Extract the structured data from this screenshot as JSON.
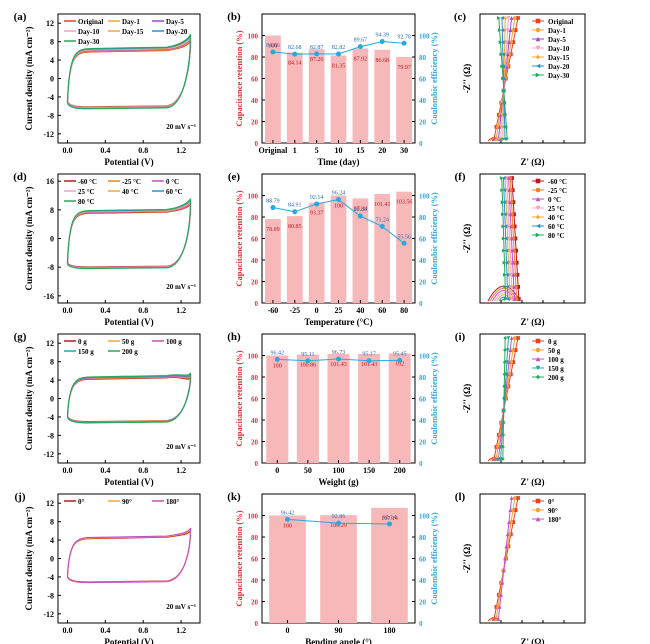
{
  "rows": [
    {
      "cv": {
        "letter": "(a)",
        "xlabel": "Potential (V)",
        "ylabel": "Current density (mA cm⁻²)",
        "xticks": [
          "0.0",
          "0.4",
          "0.8",
          "1.2"
        ],
        "yticks": [
          "12",
          "8",
          "4",
          "0",
          "-4",
          "-8",
          "-12"
        ],
        "xlim": [
          -0.1,
          1.4
        ],
        "ylim": [
          -14,
          14
        ],
        "ytick_values": [
          12,
          8,
          4,
          0,
          -4,
          -8,
          -12
        ],
        "note": "20 mV s⁻¹",
        "legend": [
          {
            "name": "Original",
            "color": "#e8402a"
          },
          {
            "name": "Day-1",
            "color": "#f2a431"
          },
          {
            "name": "Day-5",
            "color": "#9f47c4"
          },
          {
            "name": "Day-10",
            "color": "#f4a1c8"
          },
          {
            "name": "Day-15",
            "color": "#f0a93a"
          },
          {
            "name": "Day-20",
            "color": "#2a8fd6"
          },
          {
            "name": "Day-30",
            "color": "#26a95b"
          }
        ],
        "loop": {
          "top": 6.2,
          "bottom": -6.2,
          "end_high": 9.0,
          "end_low": 4.0
        }
      },
      "bar": {
        "letter": "(b)",
        "xlabel": "Time (day)",
        "ylabel_left": "Capacitance retention (%)",
        "ylabel_right": "Coulombic efficiency (%)",
        "categories": [
          "Original",
          "1",
          "5",
          "10",
          "15",
          "20",
          "30"
        ],
        "bars": [
          100,
          84.14,
          87.26,
          81.35,
          87.92,
          86.68,
          79.97
        ],
        "bar_labels": [
          "100",
          "84.14",
          "87.26",
          "81.35",
          "87.92",
          "86.68",
          "79.97"
        ],
        "line": [
          84.66,
          82.68,
          82.87,
          82.82,
          89.67,
          94.39,
          92.78
        ],
        "line_labels": [
          "84.66",
          "82.68",
          "82.87",
          "82.82",
          "89.67",
          "94.39",
          "92.78"
        ],
        "yticks_left": [
          "100",
          "80",
          "60",
          "40",
          "20",
          "0"
        ],
        "yticks_right": [
          "100",
          "80",
          "60",
          "40",
          "20",
          "0"
        ]
      },
      "eis": {
        "letter": "(c)",
        "xlabel": "Z' (Ω)",
        "ylabel": "-Z'' (Ω)",
        "legend": [
          {
            "name": "Original",
            "color": "#e8402a",
            "marker": "square"
          },
          {
            "name": "Day-1",
            "color": "#f2a431",
            "marker": "circle"
          },
          {
            "name": "Day-5",
            "color": "#9f47c4",
            "marker": "triangle"
          },
          {
            "name": "Day-10",
            "color": "#f4a1c8",
            "marker": "tri-down"
          },
          {
            "name": "Day-15",
            "color": "#f0a93a",
            "marker": "diamond"
          },
          {
            "name": "Day-20",
            "color": "#2a8fd6",
            "marker": "tri-left"
          },
          {
            "name": "Day-30",
            "color": "#26a95b",
            "marker": "tri-right"
          }
        ]
      }
    },
    {
      "cv": {
        "letter": "(d)",
        "xlabel": "Potential (V)",
        "ylabel": "Current density (mA cm⁻²)",
        "xticks": [
          "0.0",
          "0.4",
          "0.8",
          "1.2"
        ],
        "yticks": [
          "16",
          "8",
          "0",
          "-8",
          "-16"
        ],
        "xlim": [
          -0.1,
          1.4
        ],
        "ylim": [
          -18,
          18
        ],
        "ytick_values": [
          16,
          8,
          0,
          -8,
          -16
        ],
        "note": "20 mV s⁻¹",
        "legend": [
          {
            "name": "-60 °C",
            "color": "#c0161f"
          },
          {
            "name": "-25 °C",
            "color": "#f07e2a"
          },
          {
            "name": "0 °C",
            "color": "#c64fc9"
          },
          {
            "name": "25 °C",
            "color": "#f4a1c8"
          },
          {
            "name": "40 °C",
            "color": "#f0a93a"
          },
          {
            "name": "60 °C",
            "color": "#2a8fd6"
          },
          {
            "name": "80 °C",
            "color": "#26a95b"
          }
        ],
        "loop": {
          "top": 7.5,
          "bottom": -8.0,
          "end_high": 10.5,
          "end_low": 3.5
        }
      },
      "bar": {
        "letter": "(e)",
        "xlabel": "Temperature (°C)",
        "ylabel_left": "Capacitance retention (%)",
        "ylabel_right": "Coulombic efficiency (%)",
        "categories": [
          "-60",
          "-25",
          "0",
          "25",
          "40",
          "60",
          "80"
        ],
        "bars": [
          78.09,
          80.85,
          93.37,
          100,
          97.34,
          101.41,
          103.56
        ],
        "bar_labels": [
          "78.09",
          "80.85",
          "93.37",
          "100",
          "97.34",
          "101.41",
          "103.56"
        ],
        "line": [
          88.79,
          84.91,
          92.14,
          96.24,
          80.88,
          71.24,
          55.56
        ],
        "line_labels": [
          "88.79",
          "84.91",
          "92.14",
          "96.24",
          "80.88",
          "71.24",
          "55.56"
        ],
        "yticks_left": [
          "100",
          "80",
          "60",
          "40",
          "20",
          "0"
        ],
        "yticks_right": [
          "100",
          "80",
          "60",
          "40",
          "20",
          "0"
        ]
      },
      "eis": {
        "letter": "(f)",
        "xlabel": "Z' (Ω)",
        "ylabel": "-Z'' (Ω)",
        "legend": [
          {
            "name": "-60 °C",
            "color": "#c0161f",
            "marker": "square"
          },
          {
            "name": "-25 °C",
            "color": "#f07e2a",
            "marker": "circle"
          },
          {
            "name": "0 °C",
            "color": "#c64fc9",
            "marker": "triangle"
          },
          {
            "name": "25 °C",
            "color": "#f4a1c8",
            "marker": "tri-down"
          },
          {
            "name": "40 °C",
            "color": "#f0a93a",
            "marker": "diamond"
          },
          {
            "name": "60 °C",
            "color": "#2a8fd6",
            "marker": "tri-left"
          },
          {
            "name": "80 °C",
            "color": "#26a95b",
            "marker": "tri-right"
          }
        ]
      }
    },
    {
      "cv": {
        "letter": "(g)",
        "xlabel": "Potential (V)",
        "ylabel": "Current density (mA cm⁻²)",
        "xticks": [
          "0.0",
          "0.4",
          "0.8",
          "1.2"
        ],
        "yticks": [
          "12",
          "8",
          "4",
          "0",
          "-4",
          "-8",
          "-12"
        ],
        "xlim": [
          -0.1,
          1.4
        ],
        "ylim": [
          -14,
          14
        ],
        "ytick_values": [
          12,
          8,
          4,
          0,
          -4,
          -8,
          -12
        ],
        "note": "20 mV s⁻¹",
        "legend": [
          {
            "name": "0 g",
            "color": "#c0161f"
          },
          {
            "name": "50 g",
            "color": "#f0a93a"
          },
          {
            "name": "100 g",
            "color": "#c64fc9"
          },
          {
            "name": "150 g",
            "color": "#2aa6a0"
          },
          {
            "name": "200 g",
            "color": "#26a95b"
          }
        ],
        "loop": {
          "top": 4.5,
          "bottom": -5.0,
          "end_high": 5.2,
          "end_low": 2.5
        }
      },
      "bar": {
        "letter": "(h)",
        "xlabel": "Weight (g)",
        "ylabel_left": "Capacitance retention (%)",
        "ylabel_right": "Coulombic efficiency (%)",
        "categories": [
          "0",
          "50",
          "100",
          "150",
          "200"
        ],
        "bars": [
          100,
          100.86,
          101.43,
          101.43,
          102
        ],
        "bar_labels": [
          "100",
          "100.86",
          "101.43",
          "101.43",
          "102"
        ],
        "line": [
          96.42,
          95.11,
          96.73,
          95.17,
          95.45
        ],
        "line_labels": [
          "96.42",
          "95.11",
          "96.73",
          "95.17",
          "95.45"
        ],
        "yticks_left": [
          "100",
          "80",
          "60",
          "40",
          "20",
          "0"
        ],
        "yticks_right": [
          "100",
          "80",
          "60",
          "40",
          "20",
          "0"
        ]
      },
      "eis": {
        "letter": "(i)",
        "xlabel": "Z' (Ω)",
        "ylabel": "-Z'' (Ω)",
        "legend": [
          {
            "name": "0 g",
            "color": "#e8402a",
            "marker": "square"
          },
          {
            "name": "50 g",
            "color": "#f2a431",
            "marker": "circle"
          },
          {
            "name": "100 g",
            "color": "#c64fc9",
            "marker": "triangle"
          },
          {
            "name": "150 g",
            "color": "#2aa6a0",
            "marker": "tri-down"
          },
          {
            "name": "200 g",
            "color": "#26a95b",
            "marker": "diamond"
          }
        ]
      }
    },
    {
      "cv": {
        "letter": "(j)",
        "xlabel": "Potential (V)",
        "ylabel": "Current density (mA cm⁻²)",
        "xticks": [
          "0.0",
          "0.4",
          "0.8",
          "1.2"
        ],
        "yticks": [
          "12",
          "8",
          "4",
          "0",
          "-4",
          "-8",
          "-12"
        ],
        "xlim": [
          -0.1,
          1.4
        ],
        "ylim": [
          -14,
          14
        ],
        "ytick_values": [
          12,
          8,
          4,
          0,
          -4,
          -8,
          -12
        ],
        "note": "20 mV s⁻¹",
        "legend": [
          {
            "name": "0°",
            "color": "#c0161f"
          },
          {
            "name": "90°",
            "color": "#f0a93a"
          },
          {
            "name": "180°",
            "color": "#c64fc9"
          }
        ],
        "loop": {
          "top": 4.5,
          "bottom": -5.0,
          "end_high": 6.5,
          "end_low": 2.5
        }
      },
      "bar": {
        "letter": "(k)",
        "xlabel": "Bending angle (°)",
        "ylabel_left": "Capacitance retention (%)",
        "ylabel_right": "Coulombic efficiency (%)",
        "categories": [
          "0",
          "90",
          "180"
        ],
        "bars": [
          100,
          100.29,
          107.14
        ],
        "bar_labels": [
          "100",
          "100.29",
          "107.14"
        ],
        "line": [
          96.42,
          92.86,
          92.14
        ],
        "line_labels": [
          "96.42",
          "92.86",
          "92.14"
        ],
        "yticks_left": [
          "100",
          "80",
          "60",
          "40",
          "20",
          "0"
        ],
        "yticks_right": [
          "100",
          "80",
          "60",
          "40",
          "20",
          "0"
        ]
      },
      "eis": {
        "letter": "(l)",
        "xlabel": "Z' (Ω)",
        "ylabel": "-Z'' (Ω)",
        "legend": [
          {
            "name": "0°",
            "color": "#e8402a",
            "marker": "square"
          },
          {
            "name": "90°",
            "color": "#f2a431",
            "marker": "circle"
          },
          {
            "name": "180°",
            "color": "#c64fc9",
            "marker": "triangle"
          }
        ]
      }
    }
  ],
  "chart_data": [
    {
      "type": "line",
      "panel": "(a)",
      "xlabel": "Potential (V)",
      "ylabel": "Current density (mA cm⁻²)",
      "xlim": [
        -0.1,
        1.4
      ],
      "ylim": [
        -14,
        14
      ],
      "series": [
        {
          "name": "Original"
        },
        {
          "name": "Day-1"
        },
        {
          "name": "Day-5"
        },
        {
          "name": "Day-10"
        },
        {
          "name": "Day-15"
        },
        {
          "name": "Day-20"
        },
        {
          "name": "Day-30"
        }
      ]
    },
    {
      "type": "bar",
      "panel": "(b)",
      "categories": [
        "Original",
        "1",
        "5",
        "10",
        "15",
        "20",
        "30"
      ],
      "series": [
        {
          "name": "Capacitance retention (%)",
          "values": [
            100,
            84.14,
            87.26,
            81.35,
            87.92,
            86.68,
            79.97
          ]
        },
        {
          "name": "Coulombic efficiency (%)",
          "values": [
            84.66,
            82.68,
            82.87,
            82.82,
            89.67,
            94.39,
            92.78
          ]
        }
      ],
      "xlabel": "Time (day)"
    },
    {
      "type": "scatter",
      "panel": "(c)",
      "xlabel": "Z' (Ω)",
      "ylabel": "-Z'' (Ω)"
    },
    {
      "type": "line",
      "panel": "(d)",
      "xlabel": "Potential (V)",
      "ylabel": "Current density (mA cm⁻²)",
      "xlim": [
        -0.1,
        1.4
      ],
      "ylim": [
        -18,
        18
      ],
      "series": [
        {
          "name": "-60 °C"
        },
        {
          "name": "-25 °C"
        },
        {
          "name": "0 °C"
        },
        {
          "name": "25 °C"
        },
        {
          "name": "40 °C"
        },
        {
          "name": "60 °C"
        },
        {
          "name": "80 °C"
        }
      ]
    },
    {
      "type": "bar",
      "panel": "(e)",
      "categories": [
        "-60",
        "-25",
        "0",
        "25",
        "40",
        "60",
        "80"
      ],
      "series": [
        {
          "name": "Capacitance retention (%)",
          "values": [
            78.09,
            80.85,
            93.37,
            100,
            97.34,
            101.41,
            103.56
          ]
        },
        {
          "name": "Coulombic efficiency (%)",
          "values": [
            88.79,
            84.91,
            92.14,
            96.24,
            80.88,
            71.24,
            55.56
          ]
        }
      ],
      "xlabel": "Temperature (°C)"
    },
    {
      "type": "scatter",
      "panel": "(f)",
      "xlabel": "Z' (Ω)",
      "ylabel": "-Z'' (Ω)"
    },
    {
      "type": "line",
      "panel": "(g)",
      "xlabel": "Potential (V)",
      "ylabel": "Current density (mA cm⁻²)",
      "xlim": [
        -0.1,
        1.4
      ],
      "ylim": [
        -14,
        14
      ],
      "series": [
        {
          "name": "0 g"
        },
        {
          "name": "50 g"
        },
        {
          "name": "100 g"
        },
        {
          "name": "150 g"
        },
        {
          "name": "200 g"
        }
      ]
    },
    {
      "type": "bar",
      "panel": "(h)",
      "categories": [
        "0",
        "50",
        "100",
        "150",
        "200"
      ],
      "series": [
        {
          "name": "Capacitance retention (%)",
          "values": [
            100,
            100.86,
            101.43,
            101.43,
            102
          ]
        },
        {
          "name": "Coulombic efficiency (%)",
          "values": [
            96.42,
            95.11,
            96.73,
            95.17,
            95.45
          ]
        }
      ],
      "xlabel": "Weight (g)"
    },
    {
      "type": "scatter",
      "panel": "(i)",
      "xlabel": "Z' (Ω)",
      "ylabel": "-Z'' (Ω)"
    },
    {
      "type": "line",
      "panel": "(j)",
      "xlabel": "Potential (V)",
      "ylabel": "Current density (mA cm⁻²)",
      "xlim": [
        -0.1,
        1.4
      ],
      "ylim": [
        -14,
        14
      ],
      "series": [
        {
          "name": "0°"
        },
        {
          "name": "90°"
        },
        {
          "name": "180°"
        }
      ]
    },
    {
      "type": "bar",
      "panel": "(k)",
      "categories": [
        "0",
        "90",
        "180"
      ],
      "series": [
        {
          "name": "Capacitance retention (%)",
          "values": [
            100,
            100.29,
            107.14
          ]
        },
        {
          "name": "Coulombic efficiency (%)",
          "values": [
            96.42,
            92.86,
            92.14
          ]
        }
      ],
      "xlabel": "Bending angle (°)"
    },
    {
      "type": "scatter",
      "panel": "(l)",
      "xlabel": "Z' (Ω)",
      "ylabel": "-Z'' (Ω)"
    }
  ]
}
